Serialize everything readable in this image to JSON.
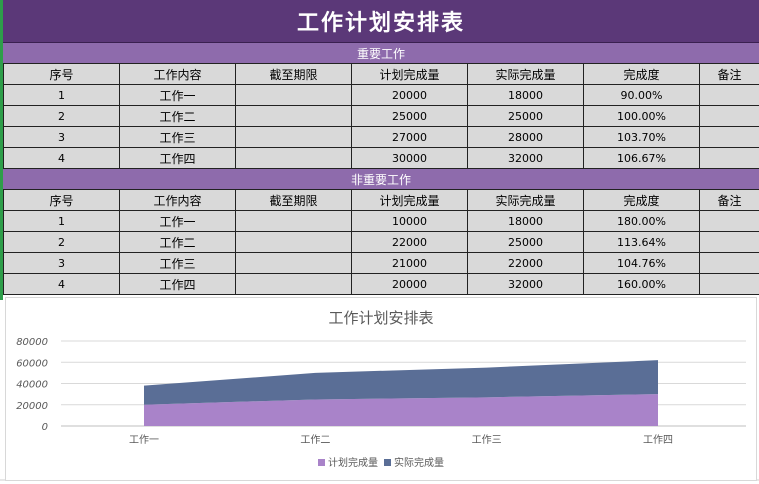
{
  "title": "工作计划安排表",
  "sections": [
    {
      "header": "重要工作",
      "columns": [
        "序号",
        "工作内容",
        "截至期限",
        "计划完成量",
        "实际完成量",
        "完成度",
        "备注"
      ],
      "rows": [
        [
          "1",
          "工作一",
          "",
          "20000",
          "18000",
          "90.00%",
          ""
        ],
        [
          "2",
          "工作二",
          "",
          "25000",
          "25000",
          "100.00%",
          ""
        ],
        [
          "3",
          "工作三",
          "",
          "27000",
          "28000",
          "103.70%",
          ""
        ],
        [
          "4",
          "工作四",
          "",
          "30000",
          "32000",
          "106.67%",
          ""
        ]
      ]
    },
    {
      "header": "非重要工作",
      "columns": [
        "序号",
        "工作内容",
        "截至期限",
        "计划完成量",
        "实际完成量",
        "完成度",
        "备注"
      ],
      "rows": [
        [
          "1",
          "工作一",
          "",
          "10000",
          "18000",
          "180.00%",
          ""
        ],
        [
          "2",
          "工作二",
          "",
          "22000",
          "25000",
          "113.64%",
          ""
        ],
        [
          "3",
          "工作三",
          "",
          "21000",
          "22000",
          "104.76%",
          ""
        ],
        [
          "4",
          "工作四",
          "",
          "20000",
          "32000",
          "160.00%",
          ""
        ]
      ]
    }
  ],
  "chart_data": {
    "type": "area",
    "stacked": true,
    "title": "工作计划安排表",
    "categories": [
      "工作一",
      "工作二",
      "工作三",
      "工作四"
    ],
    "series": [
      {
        "name": "计划完成量",
        "values": [
          20000,
          25000,
          27000,
          30000
        ],
        "color": "#a983c9"
      },
      {
        "name": "实际完成量",
        "values": [
          18000,
          25000,
          28000,
          32000
        ],
        "color": "#5a6e96"
      }
    ],
    "yticks": [
      "0",
      "20000",
      "40000",
      "60000",
      "80000"
    ],
    "ylim": [
      0,
      80000
    ],
    "grid": true,
    "legend_position": "bottom"
  },
  "colors": {
    "title_bg": "#5b3878",
    "section_bg": "#8e6bac",
    "cell_bg": "#d9d9d9",
    "sheet_edge": "#2e9e4a"
  }
}
